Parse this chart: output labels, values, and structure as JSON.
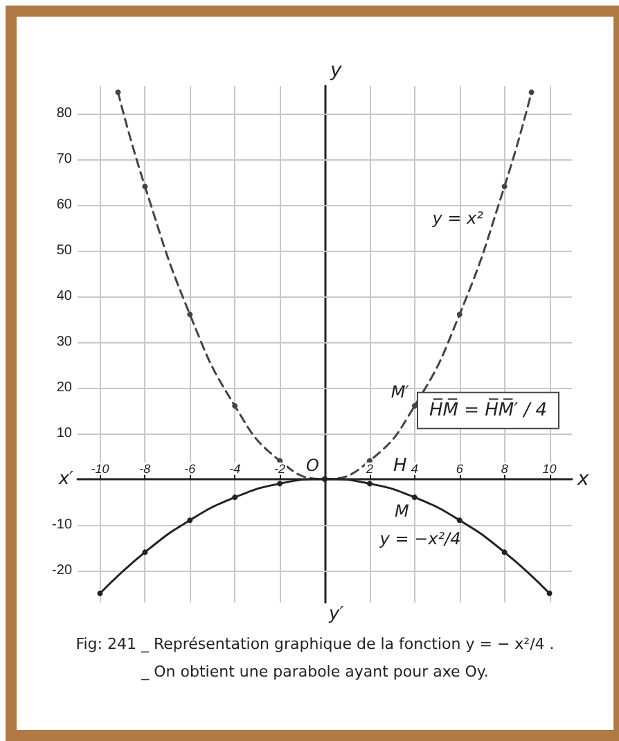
{
  "chart_data": {
    "type": "line",
    "title": "Fig: 241 _ Représentation graphique de la fonction y = − x²/4 .",
    "subtitle": "_ On obtient une parabole ayant pour axe Oy.",
    "xlabel": "x",
    "ylabel": "y",
    "series": [
      {
        "x": [
          -9.2,
          -8,
          -6,
          -4,
          -2,
          0,
          2,
          4,
          6,
          8,
          9.2
        ],
        "values": [
          84.6,
          64,
          36,
          16,
          4,
          0,
          4,
          16,
          36,
          64,
          84.6
        ],
        "color": "#444444",
        "line_style": "dashed"
      },
      {
        "x": [
          -10,
          -8,
          -6,
          -4,
          -2,
          0,
          2,
          4,
          6,
          8,
          10
        ],
        "values": [
          -25,
          -16,
          -9,
          -4,
          -1,
          0,
          -1,
          -4,
          -9,
          -16,
          -25
        ],
        "color": "#222222",
        "line_style": "solid"
      }
    ],
    "xlim": [
      -11,
      11
    ],
    "ylim": [
      -27,
      86
    ],
    "xticks": [
      -10,
      -8,
      -6,
      -4,
      -2,
      2,
      4,
      6,
      8,
      10
    ],
    "yticks": [
      -20,
      -10,
      10,
      20,
      30,
      40,
      50,
      60,
      70,
      80
    ],
    "grid": true,
    "marker": "circle",
    "annotations": [
      {
        "text": "y = x²",
        "x": 7.3,
        "y": 54
      },
      {
        "text": "y = −x²/4",
        "x": 6.3,
        "y": -10
      },
      {
        "text": "M′",
        "x": 4,
        "y": 16
      },
      {
        "text": "M",
        "x": 4,
        "y": -4
      },
      {
        "text": "O",
        "x": 0,
        "y": 0
      },
      "x′",
      "y′",
      "H",
      "H̅M̅ = H̅M̅′ / 4"
    ]
  }
}
